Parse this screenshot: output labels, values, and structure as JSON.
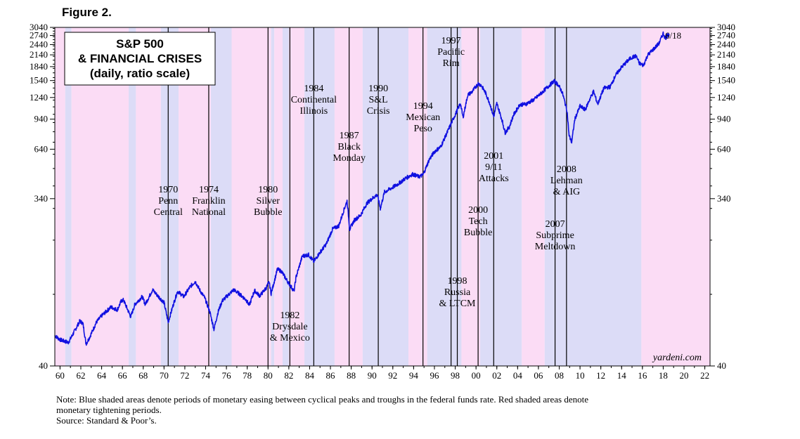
{
  "figure_label": "Figure 2.",
  "note": {
    "line1": "Note: Blue shaded areas denote periods of monetary easing between cyclical peaks and troughs in the federal funds rate. Red shaded areas denote",
    "line2": "monetary tightening periods.",
    "source": "Source: Standard & Poor’s."
  },
  "colors": {
    "easing": "#dcdcf7",
    "tightening": "#fbdcf5",
    "line": "#1010e0",
    "grid": "#000000"
  },
  "chart_data": {
    "type": "line",
    "title": [
      "S&P 500",
      "& FINANCIAL CRISES",
      "(daily, ratio scale)"
    ],
    "brand": "yardeni.com",
    "end_label": "6/18",
    "y_scale": "log",
    "ylim": [
      40,
      3040
    ],
    "y_ticks": [
      40,
      340,
      640,
      940,
      1240,
      1540,
      1840,
      2140,
      2440,
      2740,
      3040
    ],
    "y_tick_labels": [
      "40",
      "340",
      "640",
      "940",
      "1240",
      "1540",
      "1840",
      "2140",
      "2440",
      "2740",
      "3040"
    ],
    "xlim": [
      1959.5,
      2022.5
    ],
    "x_ticks": [
      1960,
      1962,
      1964,
      1966,
      1968,
      1970,
      1972,
      1974,
      1976,
      1978,
      1980,
      1982,
      1984,
      1986,
      1988,
      1990,
      1992,
      1994,
      1996,
      1998,
      2000,
      2002,
      2004,
      2006,
      2008,
      2010,
      2012,
      2014,
      2016,
      2018,
      2020,
      2022
    ],
    "x_tick_labels": [
      "60",
      "62",
      "64",
      "66",
      "68",
      "70",
      "72",
      "74",
      "76",
      "78",
      "80",
      "82",
      "84",
      "86",
      "88",
      "90",
      "92",
      "94",
      "96",
      "98",
      "00",
      "02",
      "04",
      "06",
      "08",
      "10",
      "12",
      "14",
      "16",
      "18",
      "20",
      "22"
    ],
    "shaded_periods": [
      {
        "start": 1959.5,
        "end": 1960.5,
        "kind": "tightening"
      },
      {
        "start": 1960.5,
        "end": 1961.1,
        "kind": "easing"
      },
      {
        "start": 1961.1,
        "end": 1966.6,
        "kind": "tightening"
      },
      {
        "start": 1966.6,
        "end": 1967.3,
        "kind": "easing"
      },
      {
        "start": 1967.3,
        "end": 1969.7,
        "kind": "tightening"
      },
      {
        "start": 1969.7,
        "end": 1971.4,
        "kind": "easing"
      },
      {
        "start": 1971.4,
        "end": 1974.5,
        "kind": "tightening"
      },
      {
        "start": 1974.5,
        "end": 1976.5,
        "kind": "easing"
      },
      {
        "start": 1976.5,
        "end": 1980.3,
        "kind": "tightening"
      },
      {
        "start": 1980.3,
        "end": 1980.6,
        "kind": "easing"
      },
      {
        "start": 1980.6,
        "end": 1981.4,
        "kind": "tightening"
      },
      {
        "start": 1981.4,
        "end": 1982.0,
        "kind": "easing"
      },
      {
        "start": 1982.0,
        "end": 1983.5,
        "kind": "tightening"
      },
      {
        "start": 1983.5,
        "end": 1986.4,
        "kind": "easing"
      },
      {
        "start": 1986.4,
        "end": 1989.1,
        "kind": "tightening"
      },
      {
        "start": 1989.1,
        "end": 1993.5,
        "kind": "easing"
      },
      {
        "start": 1993.5,
        "end": 1995.3,
        "kind": "tightening"
      },
      {
        "start": 1995.3,
        "end": 1998.6,
        "kind": "easing"
      },
      {
        "start": 1998.6,
        "end": 2000.4,
        "kind": "tightening"
      },
      {
        "start": 2000.4,
        "end": 2004.4,
        "kind": "easing"
      },
      {
        "start": 2004.4,
        "end": 2006.6,
        "kind": "tightening"
      },
      {
        "start": 2006.6,
        "end": 2015.9,
        "kind": "easing"
      },
      {
        "start": 2015.9,
        "end": 2022.5,
        "kind": "tightening"
      }
    ],
    "events": [
      {
        "year": 1970.4,
        "label": [
          "1970",
          "Penn",
          "Central"
        ],
        "label_pos": "mid"
      },
      {
        "year": 1974.3,
        "label": [
          "1974",
          "Franklin",
          "National"
        ],
        "label_pos": "mid"
      },
      {
        "year": 1980.0,
        "label": [
          "1980",
          "Silver",
          "Bubble"
        ],
        "label_pos": "mid"
      },
      {
        "year": 1982.1,
        "label": [
          "1982",
          "Drysdale",
          "& Mexico"
        ],
        "label_pos": "low"
      },
      {
        "year": 1984.4,
        "label": [
          "1984",
          "Continental",
          "Illinois"
        ],
        "label_pos": "high"
      },
      {
        "year": 1987.8,
        "label": [
          "1987",
          "Black",
          "Monday"
        ],
        "label_pos": "upper"
      },
      {
        "year": 1990.6,
        "label": [
          "1990",
          "S&L",
          "Crisis"
        ],
        "label_pos": "high"
      },
      {
        "year": 1994.9,
        "label": [
          "1994",
          "Mexican",
          "Peso"
        ],
        "label_pos": "high2"
      },
      {
        "year": 1997.6,
        "label": [
          "1997",
          "Pacific",
          "Rim"
        ],
        "label_pos": "top"
      },
      {
        "year": 1998.2,
        "label": [
          "1998",
          "Russia",
          "& LTCM"
        ],
        "label_pos": "low2"
      },
      {
        "year": 2000.2,
        "label": [
          "2000",
          "Tech",
          "Bubble"
        ],
        "label_pos": "mid2"
      },
      {
        "year": 2001.7,
        "label": [
          "2001",
          "9/11",
          "Attacks"
        ],
        "label_pos": "upper2"
      },
      {
        "year": 2007.6,
        "label": [
          "2007",
          "Subprime",
          "Meltdown"
        ],
        "label_pos": "mid3"
      },
      {
        "year": 2008.7,
        "label": [
          "2008",
          "Lehman",
          "& AIG"
        ],
        "label_pos": "upper3"
      }
    ],
    "series": [
      {
        "name": "S&P 500",
        "points": [
          [
            1959.5,
            59
          ],
          [
            1960.0,
            56
          ],
          [
            1960.8,
            54
          ],
          [
            1961.1,
            58
          ],
          [
            1961.9,
            71
          ],
          [
            1962.2,
            69
          ],
          [
            1962.5,
            53
          ],
          [
            1962.8,
            57
          ],
          [
            1963.5,
            70
          ],
          [
            1964.0,
            76
          ],
          [
            1964.9,
            85
          ],
          [
            1965.5,
            82
          ],
          [
            1965.9,
            92
          ],
          [
            1966.1,
            93
          ],
          [
            1966.8,
            75
          ],
          [
            1967.2,
            88
          ],
          [
            1967.9,
            97
          ],
          [
            1968.2,
            88
          ],
          [
            1968.9,
            106
          ],
          [
            1969.4,
            98
          ],
          [
            1970.0,
            90
          ],
          [
            1970.4,
            70
          ],
          [
            1970.9,
            88
          ],
          [
            1971.3,
            104
          ],
          [
            1971.9,
            97
          ],
          [
            1972.5,
            110
          ],
          [
            1973.0,
            118
          ],
          [
            1973.5,
            104
          ],
          [
            1973.9,
            96
          ],
          [
            1974.4,
            80
          ],
          [
            1974.8,
            64
          ],
          [
            1975.2,
            80
          ],
          [
            1975.6,
            92
          ],
          [
            1976.0,
            97
          ],
          [
            1976.7,
            106
          ],
          [
            1977.3,
            100
          ],
          [
            1977.9,
            93
          ],
          [
            1978.2,
            87
          ],
          [
            1978.7,
            105
          ],
          [
            1979.2,
            98
          ],
          [
            1979.8,
            108
          ],
          [
            1980.1,
            117
          ],
          [
            1980.3,
            101
          ],
          [
            1980.9,
            138
          ],
          [
            1981.3,
            134
          ],
          [
            1981.8,
            120
          ],
          [
            1982.5,
            104
          ],
          [
            1982.7,
            125
          ],
          [
            1983.3,
            163
          ],
          [
            1983.9,
            166
          ],
          [
            1984.4,
            152
          ],
          [
            1984.9,
            168
          ],
          [
            1985.6,
            190
          ],
          [
            1986.2,
            230
          ],
          [
            1986.8,
            240
          ],
          [
            1987.3,
            295
          ],
          [
            1987.6,
            330
          ],
          [
            1987.85,
            230
          ],
          [
            1988.3,
            258
          ],
          [
            1988.9,
            275
          ],
          [
            1989.5,
            320
          ],
          [
            1990.0,
            340
          ],
          [
            1990.5,
            358
          ],
          [
            1990.8,
            300
          ],
          [
            1991.2,
            370
          ],
          [
            1991.9,
            390
          ],
          [
            1992.5,
            410
          ],
          [
            1993.2,
            440
          ],
          [
            1993.9,
            465
          ],
          [
            1994.5,
            450
          ],
          [
            1994.9,
            460
          ],
          [
            1995.5,
            560
          ],
          [
            1996.0,
            620
          ],
          [
            1996.6,
            660
          ],
          [
            1997.3,
            810
          ],
          [
            1997.8,
            940
          ],
          [
            1998.5,
            1150
          ],
          [
            1998.75,
            960
          ],
          [
            1999.2,
            1280
          ],
          [
            1999.6,
            1330
          ],
          [
            2000.2,
            1480
          ],
          [
            2000.5,
            1450
          ],
          [
            2000.9,
            1320
          ],
          [
            2001.3,
            1160
          ],
          [
            2001.7,
            970
          ],
          [
            2002.0,
            1150
          ],
          [
            2002.5,
            930
          ],
          [
            2002.8,
            790
          ],
          [
            2003.2,
            850
          ],
          [
            2003.6,
            990
          ],
          [
            2004.2,
            1130
          ],
          [
            2004.8,
            1140
          ],
          [
            2005.6,
            1210
          ],
          [
            2006.2,
            1300
          ],
          [
            2006.9,
            1420
          ],
          [
            2007.5,
            1530
          ],
          [
            2007.9,
            1460
          ],
          [
            2008.3,
            1320
          ],
          [
            2008.75,
            1050
          ],
          [
            2008.95,
            760
          ],
          [
            2009.2,
            700
          ],
          [
            2009.5,
            940
          ],
          [
            2010.0,
            1110
          ],
          [
            2010.5,
            1060
          ],
          [
            2010.9,
            1200
          ],
          [
            2011.3,
            1340
          ],
          [
            2011.7,
            1140
          ],
          [
            2012.3,
            1400
          ],
          [
            2012.9,
            1420
          ],
          [
            2013.4,
            1640
          ],
          [
            2013.9,
            1800
          ],
          [
            2014.5,
            1960
          ],
          [
            2014.9,
            2060
          ],
          [
            2015.4,
            2110
          ],
          [
            2015.7,
            1920
          ],
          [
            2016.1,
            1870
          ],
          [
            2016.5,
            2130
          ],
          [
            2017.0,
            2280
          ],
          [
            2017.6,
            2480
          ],
          [
            2018.0,
            2820
          ],
          [
            2018.2,
            2640
          ],
          [
            2018.45,
            2760
          ]
        ]
      }
    ]
  }
}
